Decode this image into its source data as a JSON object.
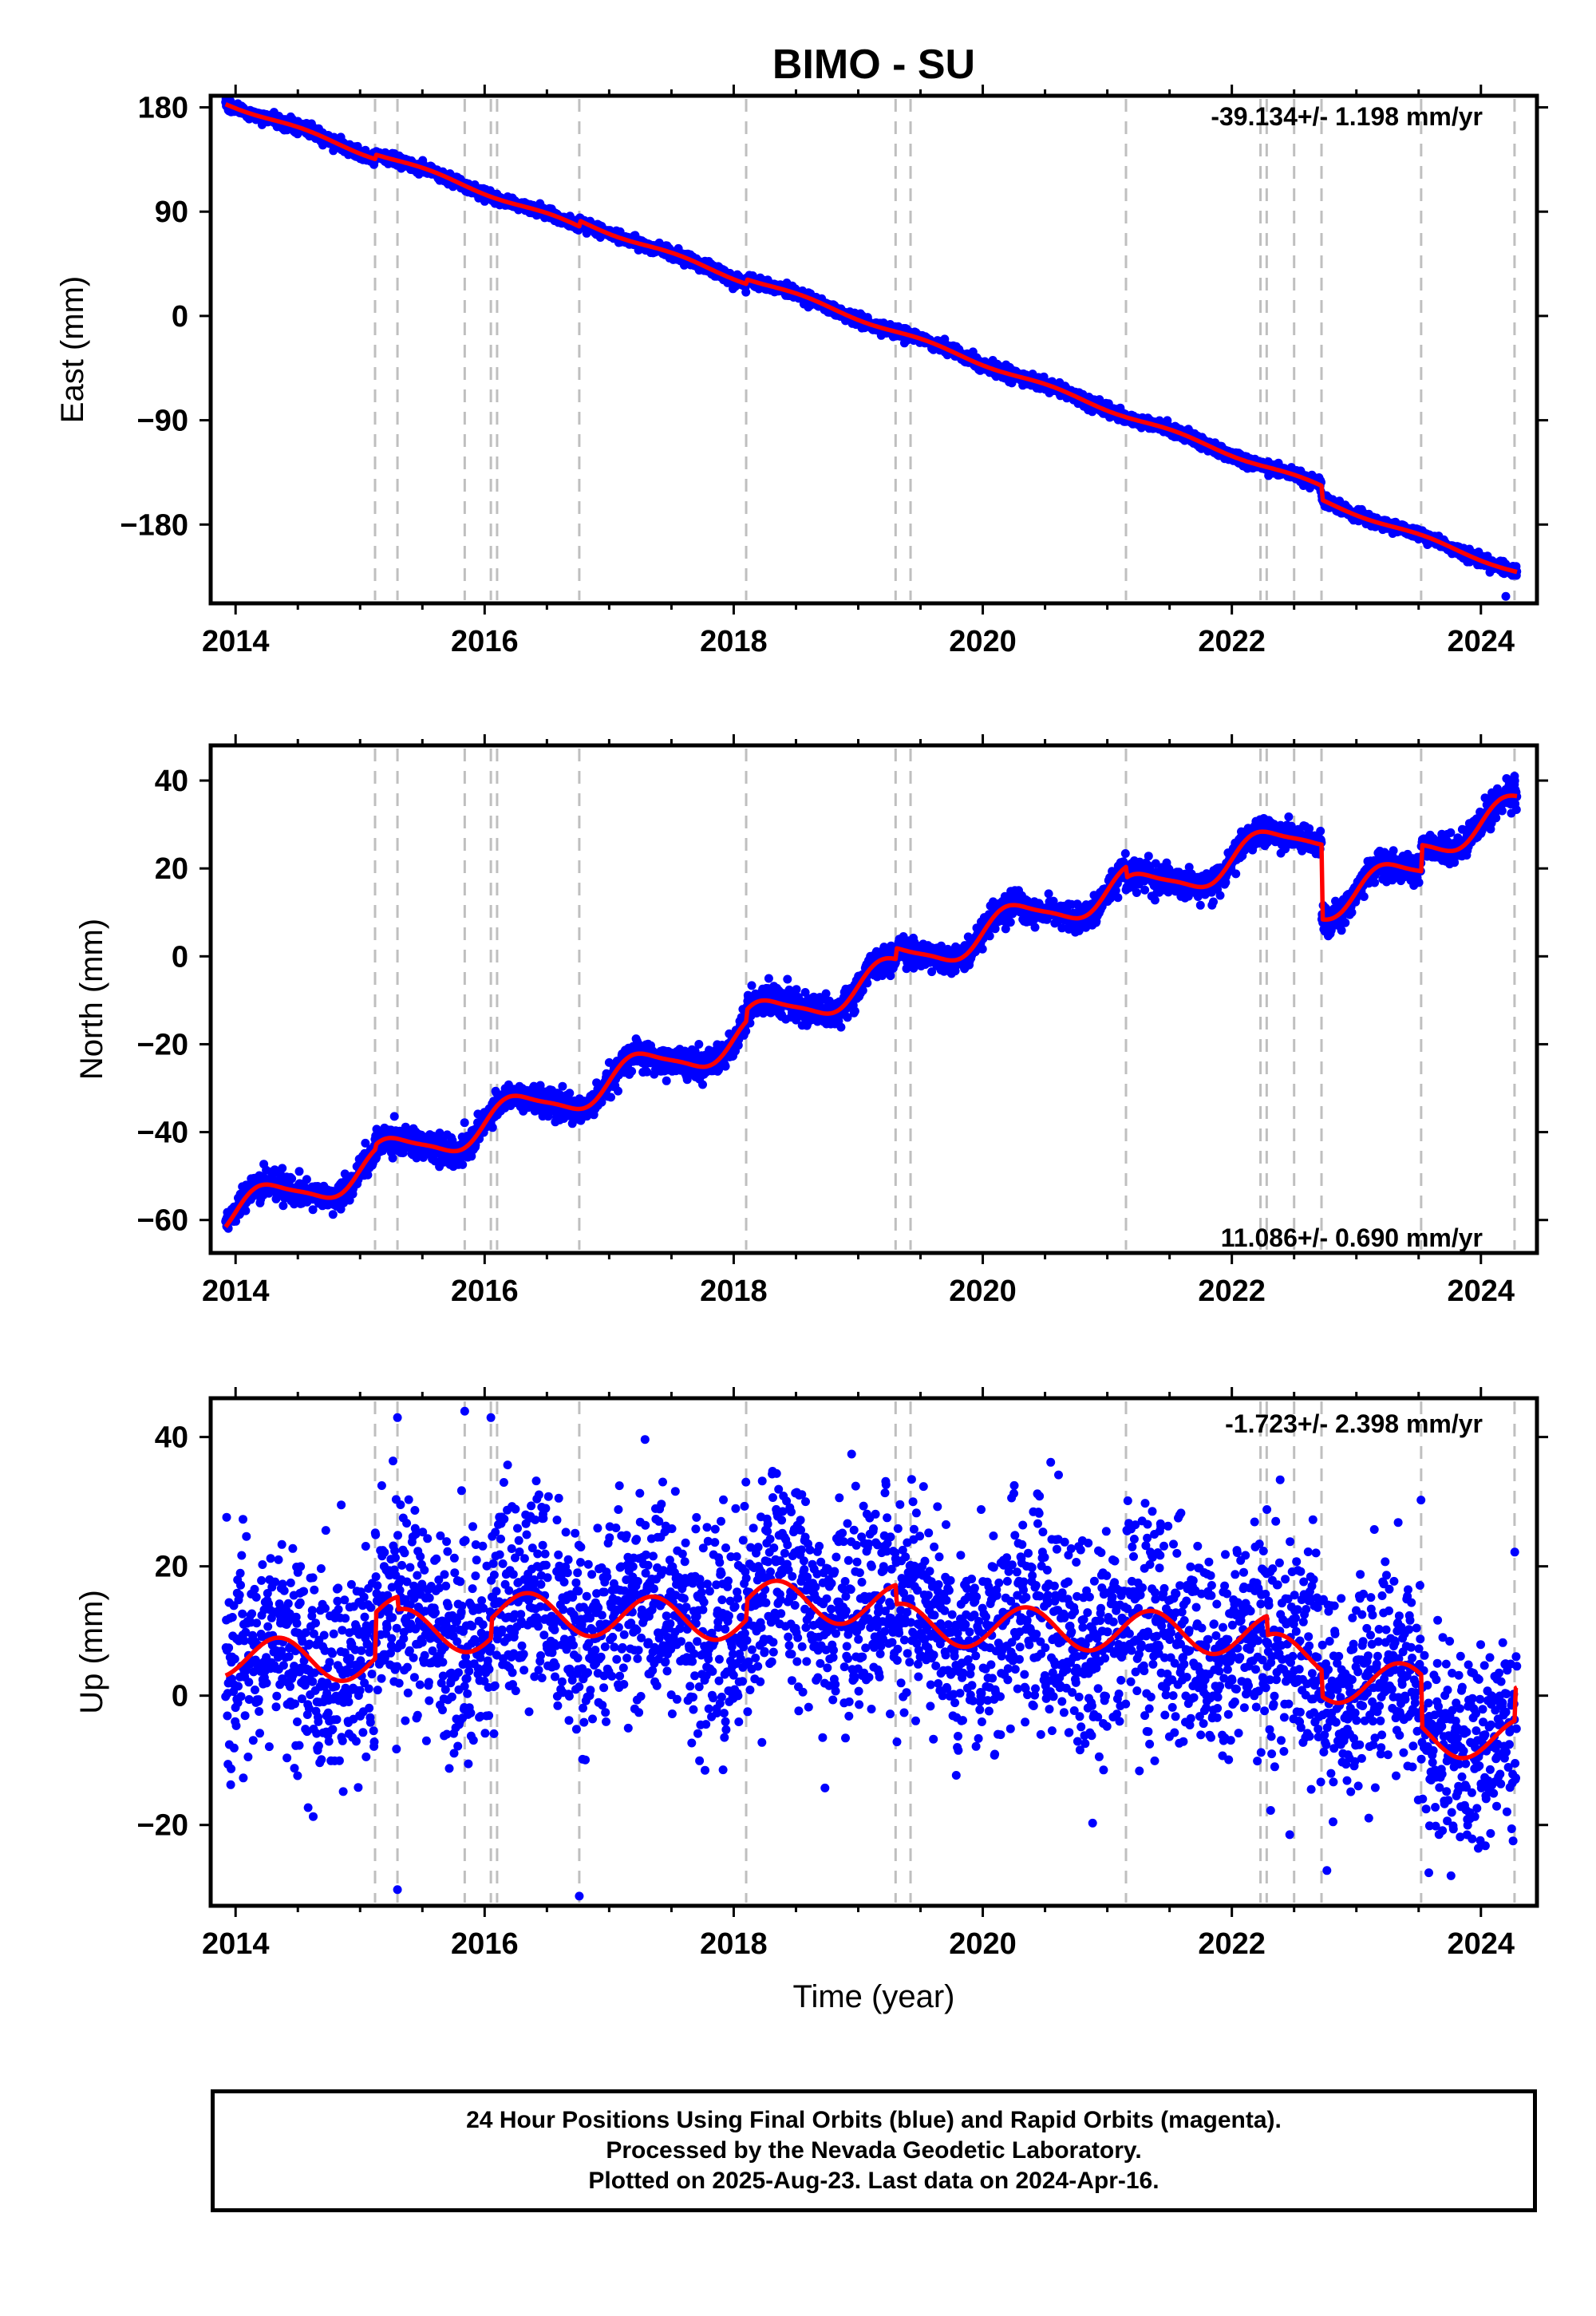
{
  "title": "BIMO - SU",
  "xlabel": "Time (year)",
  "footer": {
    "line1": "24 Hour Positions Using Final Orbits (blue) and Rapid Orbits (magenta).",
    "line2": "Processed by the Nevada Geodetic Laboratory.",
    "line3": "Plotted on 2025-Aug-23. Last data on 2024-Apr-16."
  },
  "colors": {
    "data": "#0000ff",
    "model": "#ff0000",
    "event_line": "#bfbfbf",
    "frame": "#000000"
  },
  "chart_data": [
    {
      "type": "scatter",
      "component": "East",
      "ylabel": "East (mm)",
      "rate_label": "-39.134+/- 1.198 mm/yr",
      "xlim": [
        2013.8,
        2024.45
      ],
      "ylim": [
        -248,
        190
      ],
      "x_ticks": [
        2014,
        2016,
        2018,
        2020,
        2022,
        2024
      ],
      "y_ticks": [
        -180,
        -90,
        0,
        90,
        180
      ],
      "y_tick_labels": [
        "−180",
        "−90",
        "0",
        "90",
        "180"
      ],
      "event_lines": [
        2015.12,
        2015.3,
        2015.84,
        2016.05,
        2016.1,
        2016.76,
        2018.1,
        2019.3,
        2019.42,
        2021.15,
        2022.23,
        2022.28,
        2022.5,
        2022.72,
        2023.52,
        2024.27
      ],
      "model": {
        "base": 184,
        "t0": 2013.92,
        "rate": -39.134,
        "seasonal_amp": 1.8,
        "seasonal_phase": 0.3,
        "seasonal_amp2": 0,
        "steps": [
          [
            2015.12,
            4
          ],
          [
            2016.76,
            5
          ],
          [
            2018.1,
            4
          ],
          [
            2022.72,
            -12
          ]
        ],
        "noise": 2.5,
        "outliers": [
          [
            2024.2,
            -242
          ]
        ]
      },
      "series": [
        {
          "name": "Final Orbits",
          "data_start": 2013.92,
          "data_end": 2024.29
        }
      ]
    },
    {
      "type": "scatter",
      "component": "North",
      "ylabel": "North (mm)",
      "rate_label": "11.086+/- 0.690 mm/yr",
      "xlim": [
        2013.8,
        2024.45
      ],
      "ylim": [
        -67.5,
        48
      ],
      "x_ticks": [
        2014,
        2016,
        2018,
        2020,
        2022,
        2024
      ],
      "y_ticks": [
        -60,
        -40,
        -20,
        0,
        20,
        40
      ],
      "y_tick_labels": [
        "−60",
        "−40",
        "−20",
        "0",
        "20",
        "40"
      ],
      "event_lines": [
        2015.12,
        2015.3,
        2015.84,
        2016.05,
        2016.1,
        2016.76,
        2018.1,
        2019.3,
        2019.42,
        2021.15,
        2022.23,
        2022.28,
        2022.5,
        2022.72,
        2023.52,
        2024.27
      ],
      "model": {
        "base": -59,
        "t0": 2013.92,
        "rate": 9.6,
        "seasonal_amp": 3.9,
        "seasonal_phase": 0.0,
        "seasonal_amp2": 0.8,
        "steps": [
          [
            2015.12,
            1
          ],
          [
            2018.1,
            2.5
          ],
          [
            2019.3,
            2.5
          ],
          [
            2021.15,
            -2.5
          ],
          [
            2022.72,
            -17
          ],
          [
            2023.52,
            6
          ]
        ],
        "noise": 1.6,
        "outliers": [
          [
            2024.27,
            41
          ]
        ]
      },
      "series": [
        {
          "name": "Final Orbits",
          "data_start": 2013.92,
          "data_end": 2024.29
        }
      ]
    },
    {
      "type": "scatter",
      "component": "Up",
      "ylabel": "Up (mm)",
      "rate_label": "-1.723+/- 2.398 mm/yr",
      "xlim": [
        2013.8,
        2024.45
      ],
      "ylim": [
        -32.5,
        46
      ],
      "x_ticks": [
        2014,
        2016,
        2018,
        2020,
        2022,
        2024
      ],
      "y_ticks": [
        -20,
        0,
        20,
        40
      ],
      "y_tick_labels": [
        "−20",
        "0",
        "20",
        "40"
      ],
      "event_lines": [
        2015.12,
        2015.3,
        2015.84,
        2016.05,
        2016.1,
        2016.76,
        2018.1,
        2019.3,
        2019.42,
        2021.15,
        2022.23,
        2022.28,
        2022.5,
        2022.72,
        2023.52,
        2024.27
      ],
      "model": {
        "base": 6,
        "t0": 2013.92,
        "rate": -0.55,
        "seasonal_amp": 3.2,
        "seasonal_phase": 0.1,
        "seasonal_amp2": 0,
        "steps": [
          [
            2015.12,
            7
          ],
          [
            2015.3,
            -2
          ],
          [
            2016.05,
            3
          ],
          [
            2018.1,
            3
          ],
          [
            2019.3,
            -3
          ],
          [
            2022.28,
            -3
          ],
          [
            2022.72,
            -4
          ],
          [
            2023.52,
            -8
          ],
          [
            2024.27,
            5
          ]
        ],
        "noise": 8,
        "outliers": [
          [
            2015.3,
            43
          ],
          [
            2015.84,
            44
          ],
          [
            2016.05,
            43
          ],
          [
            2016.76,
            -31
          ],
          [
            2015.3,
            -30
          ]
        ]
      },
      "series": [
        {
          "name": "Final Orbits",
          "data_start": 2013.92,
          "data_end": 2024.29
        }
      ]
    }
  ]
}
